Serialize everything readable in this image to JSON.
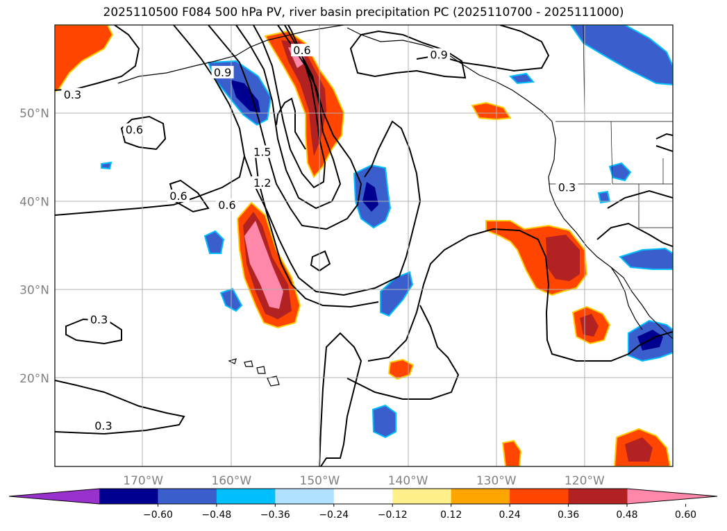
{
  "title": "2025110500 F084 500 hPa PV, river basin precipitation PC (2025110700 - 2025111000)",
  "map": {
    "lat_ticks": [
      {
        "label": "50°N",
        "lat": 50
      },
      {
        "label": "40°N",
        "lat": 40
      },
      {
        "label": "30°N",
        "lat": 30
      },
      {
        "label": "20°N",
        "lat": 20
      }
    ],
    "lon_ticks": [
      {
        "label": "170°W",
        "lon": -170
      },
      {
        "label": "160°W",
        "lon": -160
      },
      {
        "label": "150°W",
        "lon": -150
      },
      {
        "label": "140°W",
        "lon": -140
      },
      {
        "label": "130°W",
        "lon": -130
      },
      {
        "label": "120°W",
        "lon": -120
      }
    ],
    "contour_labels": [
      {
        "text": "0.3",
        "lon": -178,
        "lat": 52
      },
      {
        "text": "0.6",
        "lon": -171,
        "lat": 48
      },
      {
        "text": "0.9",
        "lon": -161,
        "lat": 54.5
      },
      {
        "text": "0.6",
        "lon": -152,
        "lat": 57
      },
      {
        "text": "0.9",
        "lon": -136.5,
        "lat": 56.5
      },
      {
        "text": "1.5",
        "lon": -156.5,
        "lat": 45.5
      },
      {
        "text": "1.2",
        "lon": -156.5,
        "lat": 42
      },
      {
        "text": "0.6",
        "lon": -166,
        "lat": 40.5
      },
      {
        "text": "0.6",
        "lon": -160.5,
        "lat": 39.5
      },
      {
        "text": "0.3",
        "lon": -175,
        "lat": 26.5
      },
      {
        "text": "0.3",
        "lon": -174.5,
        "lat": 14.5
      },
      {
        "text": "0.3",
        "lon": -122,
        "lat": 41.5
      }
    ]
  },
  "colorbar": {
    "ticks": [
      "−0.60",
      "−0.48",
      "−0.36",
      "−0.24",
      "−0.12",
      "0.12",
      "0.24",
      "0.36",
      "0.48",
      "0.60"
    ],
    "colors": [
      "#9932cc",
      "#000090",
      "#3a5fcd",
      "#00bfff",
      "#b0e2ff",
      "#ffffff",
      "#fff08c",
      "#ffa500",
      "#ff4500",
      "#b22222",
      "#ff88aa"
    ]
  }
}
